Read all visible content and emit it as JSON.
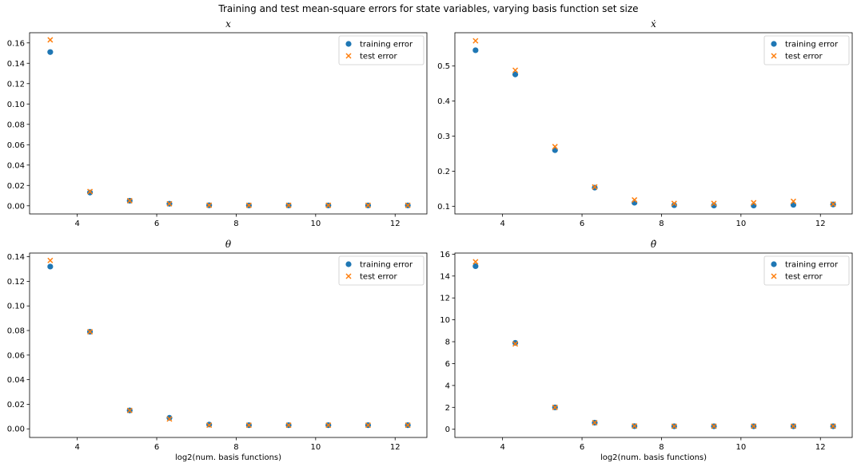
{
  "suptitle": "Training and test mean-square errors for state variables, varying basis function set size",
  "colors": {
    "training": "#1f77b4",
    "test": "#ff7f0e"
  },
  "legend": [
    "training error",
    "test error"
  ],
  "chart_data": [
    {
      "type": "scatter",
      "title": "x",
      "xlabel": "",
      "ylabel": "",
      "x": [
        3.32,
        4.32,
        5.32,
        6.32,
        7.32,
        8.32,
        9.32,
        10.32,
        11.32,
        12.32
      ],
      "xlim": [
        2.8,
        12.8
      ],
      "ylim": [
        -0.008,
        0.17
      ],
      "xticks": [
        4,
        6,
        8,
        10,
        12
      ],
      "yticks": [
        0.0,
        0.02,
        0.04,
        0.06,
        0.08,
        0.1,
        0.12,
        0.14,
        0.16
      ],
      "ytick_decimals": 2,
      "legend_position": "top-right",
      "series": [
        {
          "name": "training error",
          "marker": "circle",
          "values": [
            0.151,
            0.013,
            0.005,
            0.002,
            0.0005,
            0.0004,
            0.0004,
            0.0004,
            0.0004,
            0.0004
          ]
        },
        {
          "name": "test error",
          "marker": "x",
          "values": [
            0.163,
            0.014,
            0.005,
            0.002,
            0.0006,
            0.0005,
            0.0005,
            0.0005,
            0.0005,
            0.0005
          ]
        }
      ]
    },
    {
      "type": "scatter",
      "title": "ẋ",
      "xlabel": "",
      "ylabel": "",
      "x": [
        3.32,
        4.32,
        5.32,
        6.32,
        7.32,
        8.32,
        9.32,
        10.32,
        11.32,
        12.32
      ],
      "xlim": [
        2.8,
        12.8
      ],
      "ylim": [
        0.078,
        0.595
      ],
      "xticks": [
        4,
        6,
        8,
        10,
        12
      ],
      "yticks": [
        0.1,
        0.2,
        0.3,
        0.4,
        0.5
      ],
      "ytick_decimals": 1,
      "legend_position": "top-right",
      "series": [
        {
          "name": "training error",
          "marker": "circle",
          "values": [
            0.545,
            0.476,
            0.26,
            0.153,
            0.11,
            0.103,
            0.102,
            0.102,
            0.104,
            0.105
          ]
        },
        {
          "name": "test error",
          "marker": "x",
          "values": [
            0.572,
            0.488,
            0.27,
            0.155,
            0.118,
            0.108,
            0.108,
            0.11,
            0.114,
            0.106
          ]
        }
      ]
    },
    {
      "type": "scatter",
      "title": "θ",
      "xlabel": "log2(num. basis functions)",
      "ylabel": "",
      "x": [
        3.32,
        4.32,
        5.32,
        6.32,
        7.32,
        8.32,
        9.32,
        10.32,
        11.32,
        12.32
      ],
      "xlim": [
        2.8,
        12.8
      ],
      "ylim": [
        -0.007,
        0.143
      ],
      "xticks": [
        4,
        6,
        8,
        10,
        12
      ],
      "yticks": [
        0.0,
        0.02,
        0.04,
        0.06,
        0.08,
        0.1,
        0.12,
        0.14
      ],
      "ytick_decimals": 2,
      "legend_position": "top-right",
      "series": [
        {
          "name": "training error",
          "marker": "circle",
          "values": [
            0.132,
            0.079,
            0.015,
            0.009,
            0.0035,
            0.003,
            0.003,
            0.003,
            0.003,
            0.003
          ]
        },
        {
          "name": "test error",
          "marker": "x",
          "values": [
            0.137,
            0.079,
            0.015,
            0.008,
            0.003,
            0.003,
            0.003,
            0.003,
            0.003,
            0.003
          ]
        }
      ]
    },
    {
      "type": "scatter",
      "title": "θ̇",
      "xlabel": "log2(num. basis functions)",
      "ylabel": "",
      "x": [
        3.32,
        4.32,
        5.32,
        6.32,
        7.32,
        8.32,
        9.32,
        10.32,
        11.32,
        12.32
      ],
      "xlim": [
        2.8,
        12.8
      ],
      "ylim": [
        -0.75,
        16.1
      ],
      "xticks": [
        4,
        6,
        8,
        10,
        12
      ],
      "yticks": [
        0,
        2,
        4,
        6,
        8,
        10,
        12,
        14,
        16
      ],
      "ytick_decimals": 0,
      "legend_position": "top-right",
      "series": [
        {
          "name": "training error",
          "marker": "circle",
          "values": [
            14.9,
            7.9,
            2.0,
            0.6,
            0.28,
            0.27,
            0.27,
            0.27,
            0.27,
            0.27
          ]
        },
        {
          "name": "test error",
          "marker": "x",
          "values": [
            15.3,
            7.8,
            2.0,
            0.6,
            0.3,
            0.28,
            0.28,
            0.28,
            0.28,
            0.28
          ]
        }
      ]
    }
  ]
}
